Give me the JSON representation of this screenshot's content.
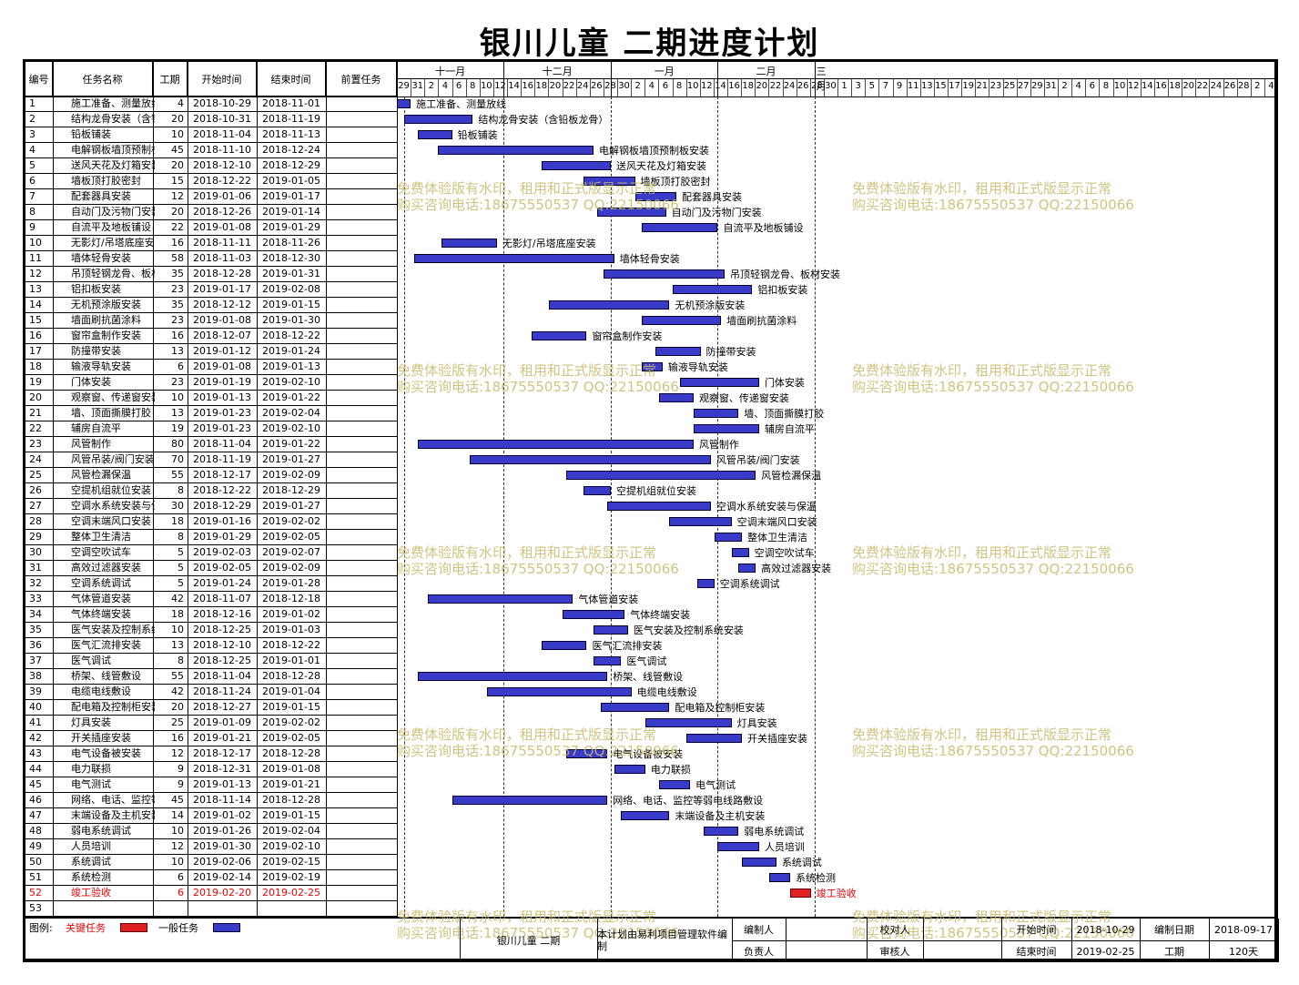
{
  "title": "银川儿童  二期进度计划",
  "headers": {
    "no": "编号",
    "name": "任务名称",
    "dur": "工期",
    "start": "开始时间",
    "end": "结束时间",
    "pred": "前置任务"
  },
  "months": [
    {
      "label": "十一月",
      "day_start": 0,
      "day_end": 31
    },
    {
      "label": "十二月",
      "day_start": 31,
      "day_end": 62
    },
    {
      "label": "一月",
      "day_start": 62,
      "day_end": 93
    },
    {
      "label": "二月",
      "day_start": 93,
      "day_end": 121
    },
    {
      "label": "三月",
      "day_start": 121,
      "day_end": 125
    }
  ],
  "days": [
    "29",
    "31",
    "2",
    "4",
    "6",
    "8",
    "10",
    "12",
    "14",
    "16",
    "18",
    "20",
    "22",
    "24",
    "26",
    "28",
    "30",
    "2",
    "4",
    "6",
    "8",
    "10",
    "12",
    "14",
    "16",
    "18",
    "20",
    "22",
    "24",
    "26",
    "28",
    "30",
    "1",
    "3",
    "5",
    "7",
    "9",
    "11",
    "13",
    "15",
    "17",
    "19",
    "21",
    "23",
    "25",
    "27",
    "29",
    "31",
    "2",
    "4",
    "6",
    "8",
    "10",
    "12",
    "14",
    "16",
    "18",
    "20",
    "22",
    "24",
    "26",
    "28",
    "2",
    "4"
  ],
  "tasks": [
    {
      "no": "1",
      "name": "施工准备、测量放线",
      "dur": "4",
      "start": "2018-10-29",
      "end": "2018-11-01",
      "label": "施工准备、测量放线",
      "s": 0,
      "e": 4
    },
    {
      "no": "2",
      "name": "结构龙骨安装（含铅板龙骨）",
      "dur": "20",
      "start": "2018-10-31",
      "end": "2018-11-19",
      "label": "结构龙骨安装（含铅板龙骨）",
      "s": 2,
      "e": 22
    },
    {
      "no": "3",
      "name": "铅板铺装",
      "dur": "10",
      "start": "2018-11-04",
      "end": "2018-11-13",
      "label": "铅板铺装",
      "s": 6,
      "e": 16
    },
    {
      "no": "4",
      "name": "电解钢板墙顶预制板安装",
      "dur": "45",
      "start": "2018-11-10",
      "end": "2018-12-24",
      "label": "电解钢板墙顶预制板安装",
      "s": 12,
      "e": 57
    },
    {
      "no": "5",
      "name": "送风天花及灯箱安装",
      "dur": "20",
      "start": "2018-12-10",
      "end": "2018-12-29",
      "label": "送风天花及灯箱安装",
      "s": 42,
      "e": 62
    },
    {
      "no": "6",
      "name": "墙板顶打胶密封",
      "dur": "15",
      "start": "2018-12-22",
      "end": "2019-01-05",
      "label": "墙板顶打胶密封",
      "s": 54,
      "e": 69
    },
    {
      "no": "7",
      "name": "配套器具安装",
      "dur": "12",
      "start": "2019-01-06",
      "end": "2019-01-17",
      "label": "配套器具安装",
      "s": 69,
      "e": 81
    },
    {
      "no": "8",
      "name": "自动门及污物门安装",
      "dur": "20",
      "start": "2018-12-26",
      "end": "2019-01-14",
      "label": "自动门及污物门安装",
      "s": 58,
      "e": 78
    },
    {
      "no": "9",
      "name": "自流平及地板铺设",
      "dur": "22",
      "start": "2019-01-08",
      "end": "2019-01-29",
      "label": "自流平及地板铺设",
      "s": 71,
      "e": 93
    },
    {
      "no": "10",
      "name": "无影灯/吊塔底座安装",
      "dur": "16",
      "start": "2018-11-11",
      "end": "2018-11-26",
      "label": "无影灯/吊塔底座安装",
      "s": 13,
      "e": 29
    },
    {
      "no": "11",
      "name": "墙体轻骨安装",
      "dur": "58",
      "start": "2018-11-03",
      "end": "2018-12-30",
      "label": "墙体轻骨安装",
      "s": 5,
      "e": 63
    },
    {
      "no": "12",
      "name": "吊顶轻钢龙骨、板材安装",
      "dur": "35",
      "start": "2018-12-28",
      "end": "2019-01-31",
      "label": "吊顶轻钢龙骨、板材安装",
      "s": 60,
      "e": 95
    },
    {
      "no": "13",
      "name": "铝扣板安装",
      "dur": "23",
      "start": "2019-01-17",
      "end": "2019-02-08",
      "label": "铝扣板安装",
      "s": 80,
      "e": 103
    },
    {
      "no": "14",
      "name": "无机预涂版安装",
      "dur": "35",
      "start": "2018-12-12",
      "end": "2019-01-15",
      "label": "无机预涂版安装",
      "s": 44,
      "e": 79
    },
    {
      "no": "15",
      "name": "墙面刷抗菌涂料",
      "dur": "23",
      "start": "2019-01-08",
      "end": "2019-01-30",
      "label": "墙面刷抗菌涂料",
      "s": 71,
      "e": 94
    },
    {
      "no": "16",
      "name": "窗帘盒制作安装",
      "dur": "16",
      "start": "2018-12-07",
      "end": "2018-12-22",
      "label": "窗帘盒制作安装",
      "s": 39,
      "e": 55
    },
    {
      "no": "17",
      "name": "防撞带安装",
      "dur": "13",
      "start": "2019-01-12",
      "end": "2019-01-24",
      "label": "防撞带安装",
      "s": 75,
      "e": 88
    },
    {
      "no": "18",
      "name": "输液导轨安装",
      "dur": "6",
      "start": "2019-01-08",
      "end": "2019-01-13",
      "label": "输液导轨安装",
      "s": 71,
      "e": 77
    },
    {
      "no": "19",
      "name": "门体安装",
      "dur": "23",
      "start": "2019-01-19",
      "end": "2019-02-10",
      "label": "门体安装",
      "s": 82,
      "e": 105
    },
    {
      "no": "20",
      "name": "观察窗、传递窗安装",
      "dur": "10",
      "start": "2019-01-13",
      "end": "2019-01-22",
      "label": "观察窗、传递窗安装",
      "s": 76,
      "e": 86
    },
    {
      "no": "21",
      "name": "墙、顶面撕膜打胶",
      "dur": "13",
      "start": "2019-01-23",
      "end": "2019-02-04",
      "label": "墙、顶面撕膜打胶",
      "s": 86,
      "e": 99
    },
    {
      "no": "22",
      "name": "辅房自流平",
      "dur": "19",
      "start": "2019-01-23",
      "end": "2019-02-10",
      "label": "辅房自流平",
      "s": 86,
      "e": 105
    },
    {
      "no": "23",
      "name": "风管制作",
      "dur": "80",
      "start": "2018-11-04",
      "end": "2019-01-22",
      "label": "风管制作",
      "s": 6,
      "e": 86
    },
    {
      "no": "24",
      "name": "风管吊装/阀门安装",
      "dur": "70",
      "start": "2018-11-19",
      "end": "2019-01-27",
      "label": "风管吊装/阀门安装",
      "s": 21,
      "e": 91
    },
    {
      "no": "25",
      "name": "风管检漏保温",
      "dur": "55",
      "start": "2018-12-17",
      "end": "2019-02-09",
      "label": "风管检漏保温",
      "s": 49,
      "e": 104
    },
    {
      "no": "26",
      "name": "空提机组就位安装",
      "dur": "8",
      "start": "2018-12-22",
      "end": "2018-12-29",
      "label": "空提机组就位安装",
      "s": 54,
      "e": 62
    },
    {
      "no": "27",
      "name": "空调水系统安装与保温",
      "dur": "30",
      "start": "2018-12-29",
      "end": "2019-01-27",
      "label": "空调水系统安装与保温",
      "s": 61,
      "e": 91
    },
    {
      "no": "28",
      "name": "空调末端风口安装",
      "dur": "18",
      "start": "2019-01-16",
      "end": "2019-02-02",
      "label": "空调末端风口安装",
      "s": 79,
      "e": 97
    },
    {
      "no": "29",
      "name": "整体卫生清洁",
      "dur": "8",
      "start": "2019-01-29",
      "end": "2019-02-05",
      "label": "整体卫生清洁",
      "s": 92,
      "e": 100
    },
    {
      "no": "30",
      "name": "空调空吹试车",
      "dur": "5",
      "start": "2019-02-03",
      "end": "2019-02-07",
      "label": "空调空吹试车",
      "s": 97,
      "e": 102
    },
    {
      "no": "31",
      "name": "高效过滤器安装",
      "dur": "5",
      "start": "2019-02-05",
      "end": "2019-02-09",
      "label": "高效过滤器安装",
      "s": 99,
      "e": 104
    },
    {
      "no": "32",
      "name": "空调系统调试",
      "dur": "5",
      "start": "2019-01-24",
      "end": "2019-01-28",
      "label": "空调系统调试",
      "s": 87,
      "e": 92
    },
    {
      "no": "33",
      "name": "气体管道安装",
      "dur": "42",
      "start": "2018-11-07",
      "end": "2018-12-18",
      "label": "气体管道安装",
      "s": 9,
      "e": 51
    },
    {
      "no": "34",
      "name": "气体终端安装",
      "dur": "18",
      "start": "2018-12-16",
      "end": "2019-01-02",
      "label": "气体终端安装",
      "s": 48,
      "e": 66
    },
    {
      "no": "35",
      "name": "医气安装及控制系统安装",
      "dur": "10",
      "start": "2018-12-25",
      "end": "2019-01-03",
      "label": "医气安装及控制系统安装",
      "s": 57,
      "e": 67
    },
    {
      "no": "36",
      "name": "医气汇流排安装",
      "dur": "13",
      "start": "2018-12-10",
      "end": "2018-12-22",
      "label": "医气汇流排安装",
      "s": 42,
      "e": 55
    },
    {
      "no": "37",
      "name": "医气调试",
      "dur": "8",
      "start": "2018-12-25",
      "end": "2019-01-01",
      "label": "医气调试",
      "s": 57,
      "e": 65
    },
    {
      "no": "38",
      "name": "桥架、线管敷设",
      "dur": "55",
      "start": "2018-11-04",
      "end": "2018-12-28",
      "label": "桥架、线管敷设",
      "s": 6,
      "e": 61
    },
    {
      "no": "39",
      "name": "电缆电线敷设",
      "dur": "42",
      "start": "2018-11-24",
      "end": "2019-01-04",
      "label": "电缆电线敷设",
      "s": 26,
      "e": 68
    },
    {
      "no": "40",
      "name": "配电箱及控制柜安装",
      "dur": "20",
      "start": "2018-12-27",
      "end": "2019-01-15",
      "label": "配电箱及控制柜安装",
      "s": 59,
      "e": 79
    },
    {
      "no": "41",
      "name": "灯具安装",
      "dur": "25",
      "start": "2019-01-09",
      "end": "2019-02-02",
      "label": "灯具安装",
      "s": 72,
      "e": 97
    },
    {
      "no": "42",
      "name": "开关插座安装",
      "dur": "16",
      "start": "2019-01-21",
      "end": "2019-02-05",
      "label": "开关插座安装",
      "s": 84,
      "e": 100
    },
    {
      "no": "43",
      "name": "电气设备被安装",
      "dur": "12",
      "start": "2018-12-17",
      "end": "2018-12-28",
      "label": "电气设备被安装",
      "s": 49,
      "e": 61
    },
    {
      "no": "44",
      "name": "电力联损",
      "dur": "9",
      "start": "2018-12-31",
      "end": "2019-01-08",
      "label": "电力联损",
      "s": 63,
      "e": 72
    },
    {
      "no": "45",
      "name": "电气测试",
      "dur": "9",
      "start": "2019-01-13",
      "end": "2019-01-21",
      "label": "电气测试",
      "s": 76,
      "e": 85
    },
    {
      "no": "46",
      "name": "网络、电话、监控等弱电线路敷设",
      "dur": "45",
      "start": "2018-11-14",
      "end": "2018-12-28",
      "label": "网络、电话、监控等弱电线路敷设",
      "s": 16,
      "e": 61
    },
    {
      "no": "47",
      "name": "末端设备及主机安装",
      "dur": "14",
      "start": "2019-01-02",
      "end": "2019-01-15",
      "label": "末端设备及主机安装",
      "s": 65,
      "e": 79
    },
    {
      "no": "48",
      "name": "弱电系统调试",
      "dur": "10",
      "start": "2019-01-26",
      "end": "2019-02-04",
      "label": "弱电系统调试",
      "s": 89,
      "e": 99
    },
    {
      "no": "49",
      "name": "人员培训",
      "dur": "12",
      "start": "2019-01-30",
      "end": "2019-02-10",
      "label": "人员培训",
      "s": 93,
      "e": 105
    },
    {
      "no": "50",
      "name": "系统调试",
      "dur": "10",
      "start": "2019-02-06",
      "end": "2019-02-15",
      "label": "系统调试",
      "s": 100,
      "e": 110
    },
    {
      "no": "51",
      "name": "系统检测",
      "dur": "6",
      "start": "2019-02-14",
      "end": "2019-02-19",
      "label": "系统检测",
      "s": 108,
      "e": 114
    },
    {
      "no": "52",
      "name": "竣工验收",
      "dur": "6",
      "start": "2019-02-20",
      "end": "2019-02-25",
      "label": "竣工验收",
      "s": 114,
      "e": 120,
      "critical": true
    },
    {
      "no": "53",
      "name": "",
      "dur": "",
      "start": "",
      "end": "",
      "label": "",
      "s": 0,
      "e": 0
    }
  ],
  "watermark": {
    "line1": "免费体验版有水印，租用和正式版显示正常",
    "line2": "购买咨询电话:18675550537 QQ:22150066"
  },
  "footer": {
    "legend_label": "图例:",
    "critical_label": "关键任务",
    "normal_label": "一般任务",
    "project_name": "银川儿童  二期",
    "software": "本计划由易利项目管理软件编制",
    "compiler_label": "编制人",
    "reviewer_label": "校对人",
    "owner_label": "负责人",
    "approver_label": "审核人",
    "start_label": "开始时间",
    "start_value": "2018-10-29",
    "end_label": "结束时间",
    "end_value": "2019-02-25",
    "date_label": "编制日期",
    "date_value": "2018-09-17",
    "dur_label": "工期",
    "dur_value": "120天"
  },
  "colors": {
    "bar": "#3a3ac9",
    "critical": "#e02020",
    "watermark": "#c9b96a"
  }
}
